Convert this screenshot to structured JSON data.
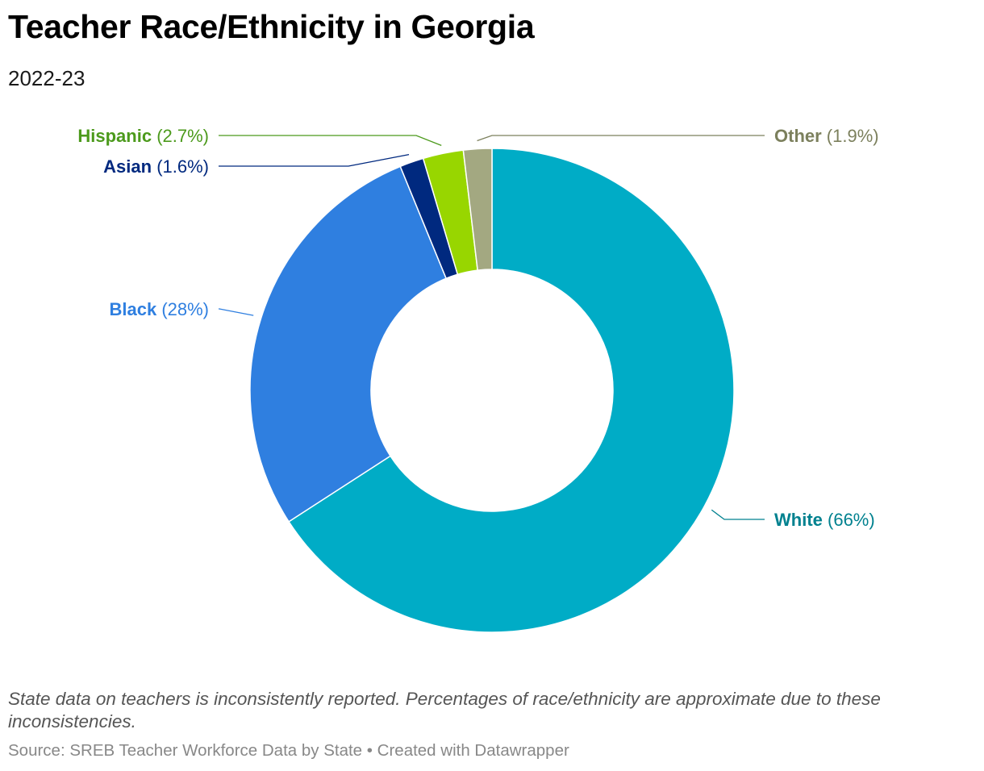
{
  "title": "Teacher Race/Ethnicity in Georgia",
  "subtitle": "2022-23",
  "note": "State data on teachers is inconsistently reported. Percentages of race/ethnicity are approximate due to these inconsistencies.",
  "footer": {
    "source_label": "Source: ",
    "source_text": "SREB Teacher Workforce Data by State",
    "separator": " • ",
    "created_with": "Created with Datawrapper"
  },
  "chart_data": {
    "type": "pie",
    "style": "donut",
    "title": "Teacher Race/Ethnicity in Georgia",
    "subtitle": "2022-23",
    "slices": [
      {
        "name": "White",
        "value": 66,
        "value_label": "(66%)",
        "color": "#00acc6",
        "label_color": "#00818f"
      },
      {
        "name": "Black",
        "value": 28,
        "value_label": "(28%)",
        "color": "#2f7fe0",
        "label_color": "#2f7fe0"
      },
      {
        "name": "Asian",
        "value": 1.6,
        "value_label": "(1.6%)",
        "color": "#00297f",
        "label_color": "#00297f"
      },
      {
        "name": "Hispanic",
        "value": 2.7,
        "value_label": "(2.7%)",
        "color": "#98d600",
        "label_color": "#4c9a1c"
      },
      {
        "name": "Other",
        "value": 1.9,
        "value_label": "(1.9%)",
        "color": "#a3a881",
        "label_color": "#7c805d"
      }
    ]
  }
}
